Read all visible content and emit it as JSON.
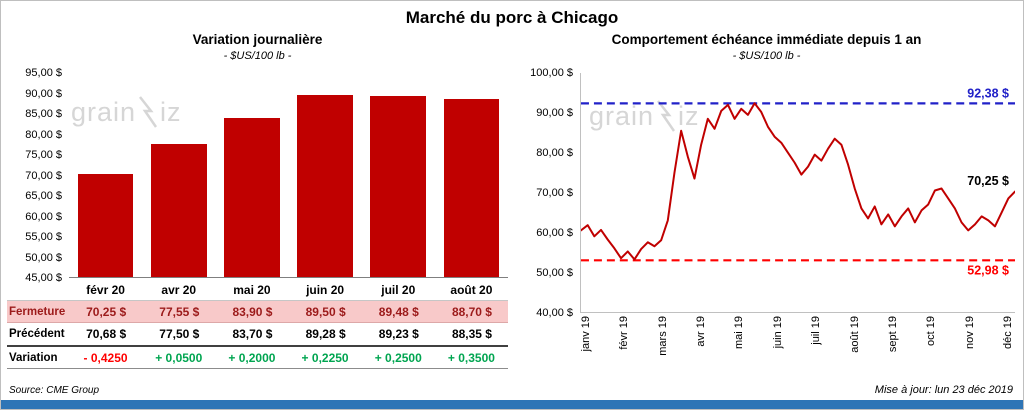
{
  "page": {
    "title": "Marché du porc à Chicago",
    "source": "Source: CME Group",
    "updated": "Mise à jour: lun 23 déc 2019",
    "watermark": {
      "left": "grain",
      "right": "iz"
    },
    "accent_blue": "#2E75B6"
  },
  "chart_data": [
    {
      "type": "bar",
      "title": "Variation journalière",
      "subtitle": "- $US/100 lb -",
      "categories": [
        "févr 20",
        "avr 20",
        "mai 20",
        "juin 20",
        "juil 20",
        "août 20"
      ],
      "values": [
        70.25,
        77.55,
        83.9,
        89.5,
        89.48,
        88.7
      ],
      "ylim": [
        45,
        95
      ],
      "ytick_step": 5,
      "ytick_labels": [
        "95,00 $",
        "90,00 $",
        "85,00 $",
        "80,00 $",
        "75,00 $",
        "70,00 $",
        "65,00 $",
        "60,00 $",
        "55,00 $",
        "50,00 $",
        "45,00 $"
      ],
      "bar_color": "#C00000",
      "grid": false,
      "table": {
        "negative_color": "#FF0000",
        "positive_color": "#00A550",
        "rows": [
          {
            "label": "Fermeture",
            "style": "fermeture",
            "bg": "#F8C9C9",
            "color": "#9C1A1A",
            "values": [
              "70,25 $",
              "77,55 $",
              "83,90 $",
              "89,50 $",
              "89,48 $",
              "88,70 $"
            ]
          },
          {
            "label": "Précédent",
            "style": "precedent",
            "values": [
              "70,68 $",
              "77,50 $",
              "83,70 $",
              "89,28 $",
              "89,23 $",
              "88,35 $"
            ]
          },
          {
            "label": "Variation",
            "style": "variation",
            "values": [
              "- 0,4250",
              "+ 0,0500",
              "+ 0,2000",
              "+ 0,2250",
              "+ 0,2500",
              "+ 0,3500"
            ]
          }
        ]
      }
    },
    {
      "type": "line",
      "title": "Comportement échéance immédiate depuis 1 an",
      "subtitle": "- $US/100 lb -",
      "x_labels": [
        "janv 19",
        "févr 19",
        "mars 19",
        "avr 19",
        "mai 19",
        "juin 19",
        "juil 19",
        "août 19",
        "sept 19",
        "oct 19",
        "nov 19",
        "déc 19"
      ],
      "ylim": [
        40,
        100
      ],
      "ytick_step": 10,
      "ytick_labels": [
        "100,00 $",
        "90,00 $",
        "80,00 $",
        "70,00 $",
        "60,00 $",
        "50,00 $",
        "40,00 $"
      ],
      "line_color": "#C00000",
      "grid": false,
      "legend": "none",
      "high_line": {
        "value": 92.38,
        "label": "92,38 $",
        "color": "#2121C8"
      },
      "low_line": {
        "value": 52.98,
        "label": "52,98 $",
        "color": "#FF0000"
      },
      "last_point": {
        "value": 70.25,
        "label": "70,25 $",
        "color": "#000000"
      },
      "values": [
        60.5,
        61.8,
        59.0,
        60.6,
        58.2,
        56.0,
        53.5,
        55.2,
        53.2,
        55.8,
        57.5,
        56.5,
        58.0,
        63.0,
        75.0,
        85.5,
        79.0,
        73.5,
        82.0,
        88.5,
        86.0,
        90.5,
        92.0,
        88.5,
        91.0,
        89.5,
        92.4,
        90.2,
        86.5,
        84.0,
        82.5,
        80.0,
        77.5,
        74.5,
        76.5,
        79.5,
        78.0,
        81.0,
        83.5,
        82.0,
        77.0,
        71.0,
        66.0,
        63.5,
        66.5,
        62.0,
        64.5,
        61.5,
        64.0,
        66.0,
        62.5,
        65.5,
        67.0,
        70.5,
        71.0,
        68.5,
        66.0,
        62.5,
        60.5,
        62.0,
        64.0,
        63.0,
        61.5,
        65.0,
        68.5,
        70.25
      ]
    }
  ]
}
